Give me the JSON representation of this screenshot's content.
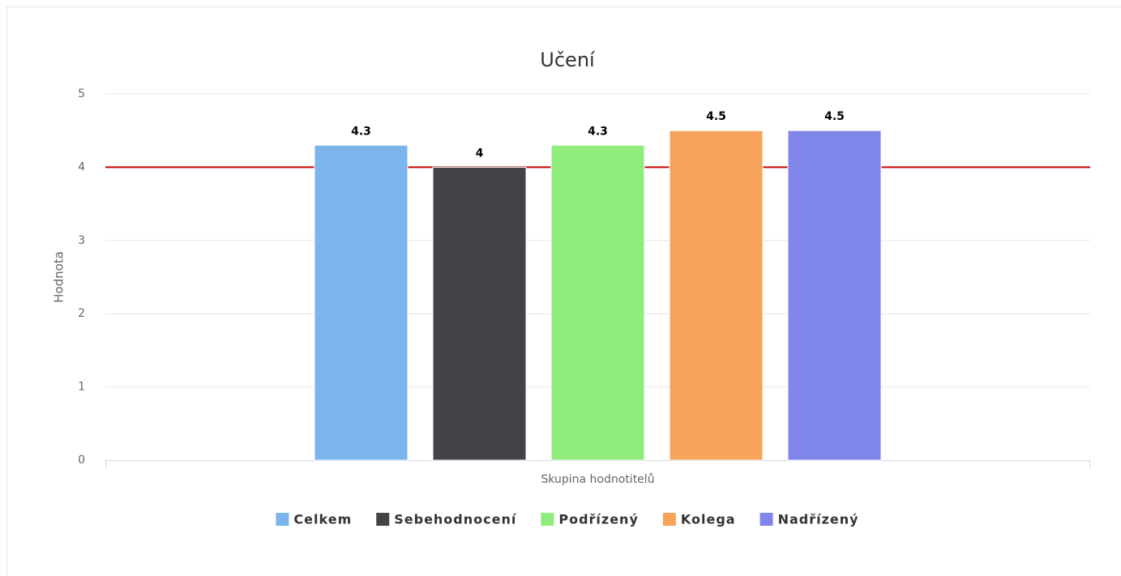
{
  "chart_data": {
    "type": "bar",
    "title": "Učení",
    "x_label": "Skupina hodnotitelů",
    "y_label": "Hodnota",
    "categories": [
      "Skupina hodnotitelů"
    ],
    "series": [
      {
        "name": "Celkem",
        "color": "#7cb5ec",
        "values": [
          4.3
        ]
      },
      {
        "name": "Sebehodnocení",
        "color": "#434348",
        "values": [
          4
        ]
      },
      {
        "name": "Podřízený",
        "color": "#90ed7d",
        "values": [
          4.3
        ]
      },
      {
        "name": "Kolega",
        "color": "#f7a35c",
        "values": [
          4.5
        ]
      },
      {
        "name": "Nadřízený",
        "color": "#8085e9",
        "values": [
          4.5
        ]
      }
    ],
    "ylim": [
      0,
      5
    ],
    "yticks": [
      0,
      1,
      2,
      3,
      4,
      5
    ],
    "grid": true,
    "reference_line": {
      "value": 4,
      "color": "#cc0000"
    },
    "legend": "bottom"
  }
}
